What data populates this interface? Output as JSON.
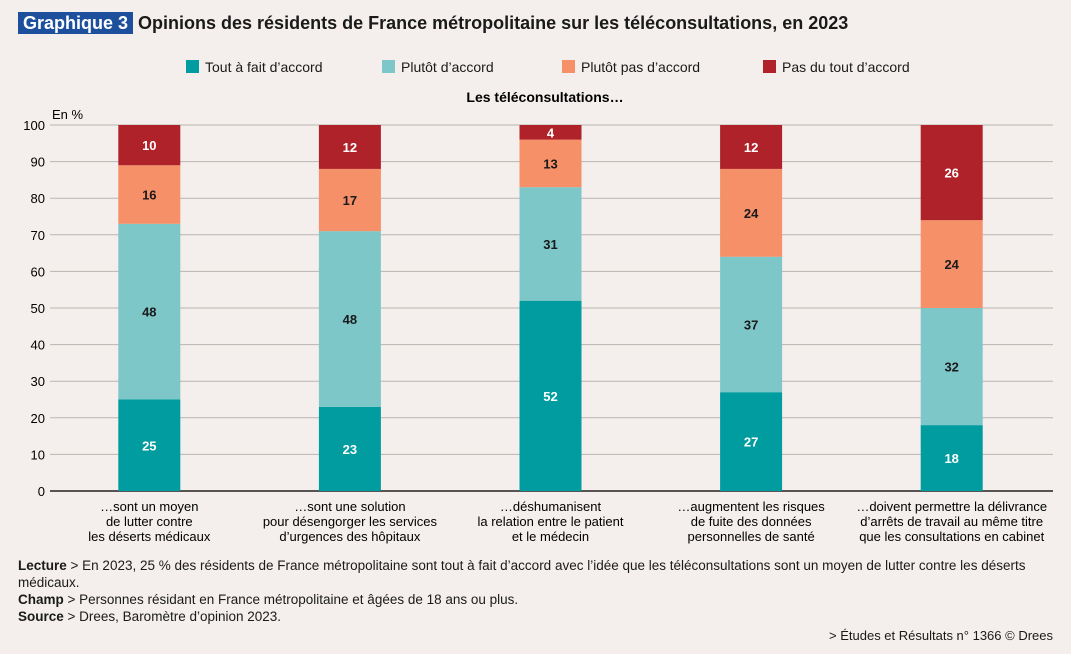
{
  "header": {
    "badge": "Graphique 3",
    "title": "Opinions des résidents de France métropolitaine sur les téléconsultations, en 2023"
  },
  "chart_data": {
    "type": "bar",
    "stacked": true,
    "subtitle": "Les téléconsultations…",
    "ylabel": "En %",
    "ylim": [
      0,
      100
    ],
    "yticks": [
      0,
      10,
      20,
      30,
      40,
      50,
      60,
      70,
      80,
      90,
      100
    ],
    "grid": true,
    "legend_position": "top",
    "categories": [
      [
        "…sont un moyen",
        "de lutter contre",
        "les déserts médicaux"
      ],
      [
        "…sont une solution",
        "pour désengorger les services",
        "d’urgences des hôpitaux"
      ],
      [
        "…déshumanisent",
        "la relation entre le patient",
        "et le médecin"
      ],
      [
        "…augmentent les risques",
        "de fuite des données",
        "personnelles de santé"
      ],
      [
        "…doivent permettre la délivrance",
        "d’arrêts de travail au même titre",
        "que les consultations en cabinet"
      ]
    ],
    "series": [
      {
        "name": "Tout à fait d’accord",
        "color": "#009ca0",
        "label_color": "#ffffff",
        "values": [
          25,
          23,
          52,
          27,
          18
        ]
      },
      {
        "name": "Plutôt d’accord",
        "color": "#7ec7c9",
        "label_color": "#1a1a1a",
        "values": [
          48,
          48,
          31,
          37,
          32
        ]
      },
      {
        "name": "Plutôt pas d’accord",
        "color": "#f59068",
        "label_color": "#1a1a1a",
        "values": [
          16,
          17,
          13,
          24,
          24
        ]
      },
      {
        "name": "Pas du tout d’accord",
        "color": "#b0222a",
        "label_color": "#ffffff",
        "values": [
          10,
          12,
          4,
          12,
          26
        ]
      }
    ]
  },
  "notes": {
    "lecture_label": "Lecture",
    "lecture": " > En 2023, 25 % des résidents de France métropolitaine sont tout à fait d’accord avec l’idée que les téléconsultations sont un moyen de lutter contre les déserts médicaux.",
    "champ_label": "Champ",
    "champ": " > Personnes résidant en France métropolitaine et âgées de 18 ans ou plus.",
    "source_label": "Source",
    "source": " > Drees, Baromètre d’opinion 2023."
  },
  "credit": "> Études et Résultats n° 1366 © Drees"
}
